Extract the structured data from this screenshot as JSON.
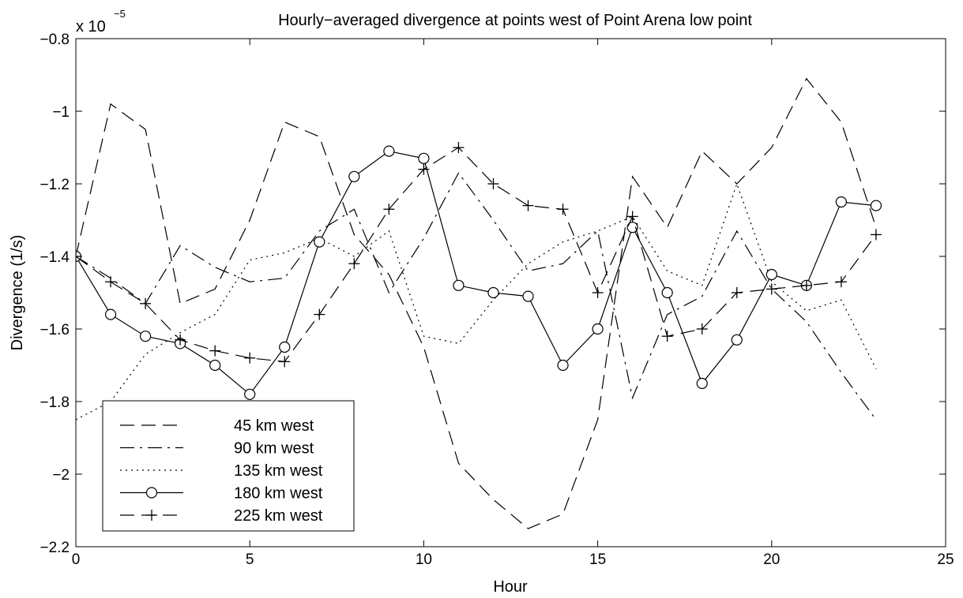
{
  "chart_data": {
    "type": "line",
    "title": "Hourly−averaged divergence at points west of Point Arena low point",
    "xlabel": "Hour",
    "ylabel": "Divergence (1/s)",
    "y_multiplier_base": "x 10",
    "y_multiplier_exponent": "−5",
    "xlim": [
      0,
      25
    ],
    "ylim": [
      -2.2,
      -0.8
    ],
    "xticks": [
      0,
      5,
      10,
      15,
      20,
      25
    ],
    "xtick_labels": [
      "0",
      "5",
      "10",
      "15",
      "20",
      "25"
    ],
    "yticks": [
      -2.2,
      -2.0,
      -1.8,
      -1.6,
      -1.4,
      -1.2,
      -1.0,
      -0.8
    ],
    "ytick_labels": [
      "−2.2",
      "−2",
      "−1.8",
      "−1.6",
      "−1.4",
      "−1.2",
      "−1",
      "−0.8"
    ],
    "grid": false,
    "legend_position": "bottom-left",
    "x": [
      0,
      1,
      2,
      3,
      4,
      5,
      6,
      7,
      8,
      9,
      10,
      11,
      12,
      13,
      14,
      15,
      16,
      17,
      18,
      19,
      20,
      21,
      22,
      23
    ],
    "series": [
      {
        "name": "45 km west",
        "line_style": "dashed",
        "marker": "none",
        "values": [
          -1.4,
          -0.98,
          -1.05,
          -1.53,
          -1.49,
          -1.3,
          -1.03,
          -1.07,
          -1.34,
          -1.45,
          -1.65,
          -1.97,
          -2.07,
          -2.15,
          -2.11,
          -1.85,
          -1.18,
          -1.32,
          -1.11,
          -1.2,
          -1.1,
          -0.91,
          -1.03,
          -1.32
        ]
      },
      {
        "name": "90 km west",
        "line_style": "dashdot",
        "marker": "none",
        "values": [
          -1.4,
          -1.46,
          -1.53,
          -1.37,
          -1.43,
          -1.47,
          -1.46,
          -1.33,
          -1.27,
          -1.5,
          -1.35,
          -1.17,
          -1.3,
          -1.44,
          -1.42,
          -1.33,
          -1.79,
          -1.56,
          -1.51,
          -1.33,
          -1.49,
          -1.58,
          -1.72,
          -1.85
        ]
      },
      {
        "name": "135 km west",
        "line_style": "dotted",
        "marker": "none",
        "values": [
          -1.85,
          -1.8,
          -1.67,
          -1.61,
          -1.56,
          -1.41,
          -1.39,
          -1.35,
          -1.4,
          -1.33,
          -1.62,
          -1.64,
          -1.52,
          -1.42,
          -1.36,
          -1.33,
          -1.29,
          -1.44,
          -1.48,
          -1.2,
          -1.47,
          -1.55,
          -1.52,
          -1.71
        ]
      },
      {
        "name": "180 km west",
        "line_style": "solid",
        "marker": "circle",
        "values": [
          -1.4,
          -1.56,
          -1.62,
          -1.64,
          -1.7,
          -1.78,
          -1.65,
          -1.36,
          -1.18,
          -1.11,
          -1.13,
          -1.48,
          -1.5,
          -1.51,
          -1.7,
          -1.6,
          -1.32,
          -1.5,
          -1.75,
          -1.63,
          -1.45,
          -1.48,
          -1.25,
          -1.26
        ]
      },
      {
        "name": "225 km west",
        "line_style": "dashed",
        "marker": "plus",
        "values": [
          -1.4,
          -1.47,
          -1.53,
          -1.63,
          -1.66,
          -1.68,
          -1.69,
          -1.56,
          -1.42,
          -1.27,
          -1.16,
          -1.1,
          -1.2,
          -1.26,
          -1.27,
          -1.5,
          -1.29,
          -1.62,
          -1.6,
          -1.5,
          -1.49,
          -1.48,
          -1.47,
          -1.34
        ]
      }
    ]
  }
}
